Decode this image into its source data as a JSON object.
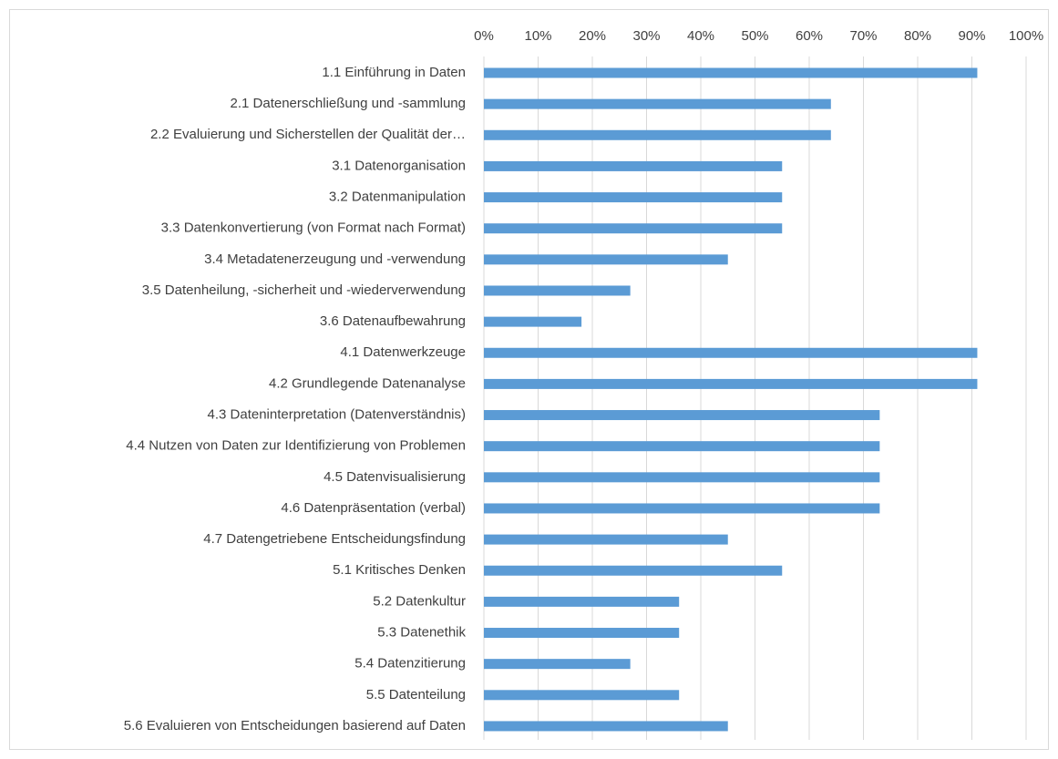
{
  "chart_data": {
    "type": "barh",
    "color": "#5b9bd5",
    "grid": true,
    "categories": [
      "1.1 Einführung in Daten",
      "2.1 Datenerschließung und -sammlung",
      "2.2 Evaluierung und Sicherstellen der Qualität der…",
      "3.1 Datenorganisation",
      "3.2 Datenmanipulation",
      "3.3 Datenkonvertierung (von Format nach Format)",
      "3.4 Metadatenerzeugung und -verwendung",
      "3.5 Datenheilung, -sicherheit und -wiederverwendung",
      "3.6 Datenaufbewahrung",
      "4.1 Datenwerkzeuge",
      "4.2 Grundlegende Datenanalyse",
      "4.3 Dateninterpretation (Datenverständnis)",
      "4.4 Nutzen von Daten zur Identifizierung von Problemen",
      "4.5 Datenvisualisierung",
      "4.6 Datenpräsentation (verbal)",
      "4.7 Datengetriebene Entscheidungsfindung",
      "5.1 Kritisches Denken",
      "5.2 Datenkultur",
      "5.3 Datenethik",
      "5.4 Datenzitierung",
      "5.5 Datenteilung",
      "5.6 Evaluieren von Entscheidungen basierend auf Daten"
    ],
    "values": [
      91,
      64,
      64,
      55,
      55,
      55,
      45,
      27,
      18,
      91,
      91,
      73,
      73,
      73,
      73,
      45,
      55,
      36,
      36,
      27,
      36,
      45
    ],
    "xlim": [
      0,
      100
    ],
    "xticks": [
      {
        "value": 0,
        "label": "0%"
      },
      {
        "value": 10,
        "label": "10%"
      },
      {
        "value": 20,
        "label": "20%"
      },
      {
        "value": 30,
        "label": "30%"
      },
      {
        "value": 40,
        "label": "40%"
      },
      {
        "value": 50,
        "label": "50%"
      },
      {
        "value": 60,
        "label": "60%"
      },
      {
        "value": 70,
        "label": "70%"
      },
      {
        "value": 80,
        "label": "80%"
      },
      {
        "value": 90,
        "label": "90%"
      },
      {
        "value": 100,
        "label": "100%"
      }
    ]
  }
}
